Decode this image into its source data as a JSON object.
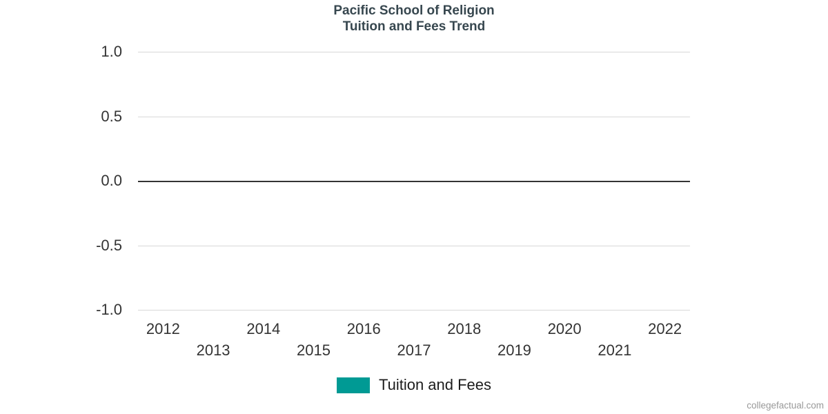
{
  "title": {
    "line1": "Pacific School of Religion",
    "line2": "Tuition and Fees Trend",
    "color": "#37474f"
  },
  "legend": {
    "items": [
      {
        "label": "Tuition and Fees",
        "color": "#009a94"
      }
    ]
  },
  "watermark": {
    "text": "collegefactual.com"
  },
  "chart_data": {
    "type": "line",
    "title": "Pacific School of Religion Tuition and Fees Trend",
    "categories": [
      "2012",
      "2013",
      "2014",
      "2015",
      "2016",
      "2017",
      "2018",
      "2019",
      "2020",
      "2021",
      "2022"
    ],
    "series": [
      {
        "name": "Tuition and Fees",
        "color": "#009a94",
        "values": []
      }
    ],
    "xlabel": "",
    "ylabel": "",
    "ylim": [
      -1.0,
      1.0
    ],
    "yticks": [
      1.0,
      0.5,
      0.0,
      -0.5,
      -1.0
    ],
    "ytick_labels": [
      "1.0",
      "0.5",
      "0.0",
      "-0.5",
      "-1.0"
    ],
    "grid": true,
    "legend_position": "bottom",
    "colors": {
      "gridline": "#d8d8d8",
      "zero_line": "#333333",
      "tick_label": "#333333"
    }
  }
}
